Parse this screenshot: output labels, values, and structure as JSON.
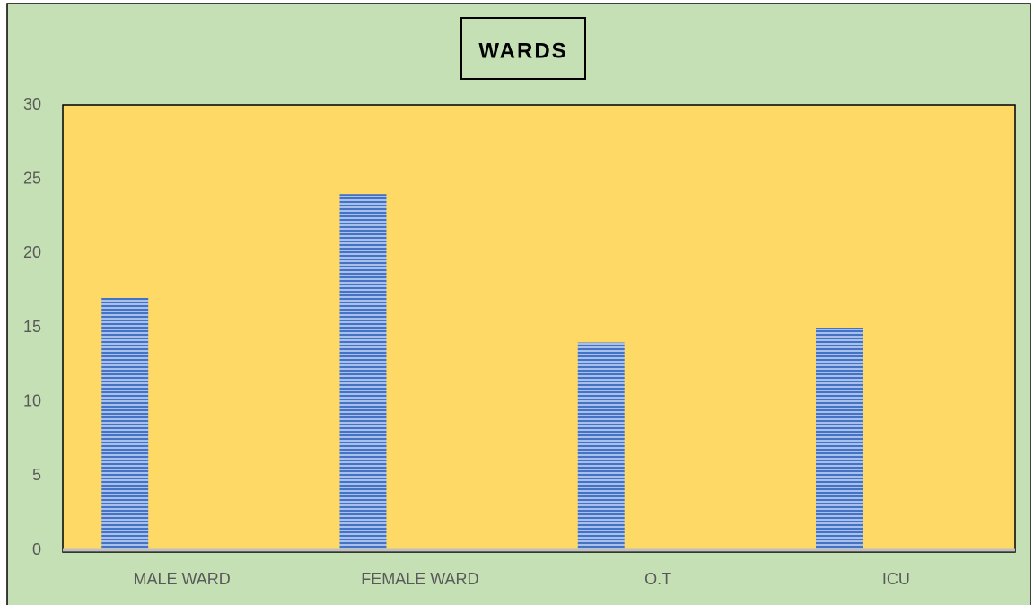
{
  "chart_data": {
    "type": "bar",
    "title": "WARDS",
    "categories": [
      "MALE WARD",
      "FEMALE WARD",
      "O.T",
      "ICU"
    ],
    "values": [
      17,
      24,
      14,
      15
    ],
    "color": "#4472c4",
    "ylim": [
      0,
      30
    ],
    "yticks": [
      0,
      5,
      10,
      15,
      20,
      25,
      30
    ],
    "grid": false
  }
}
